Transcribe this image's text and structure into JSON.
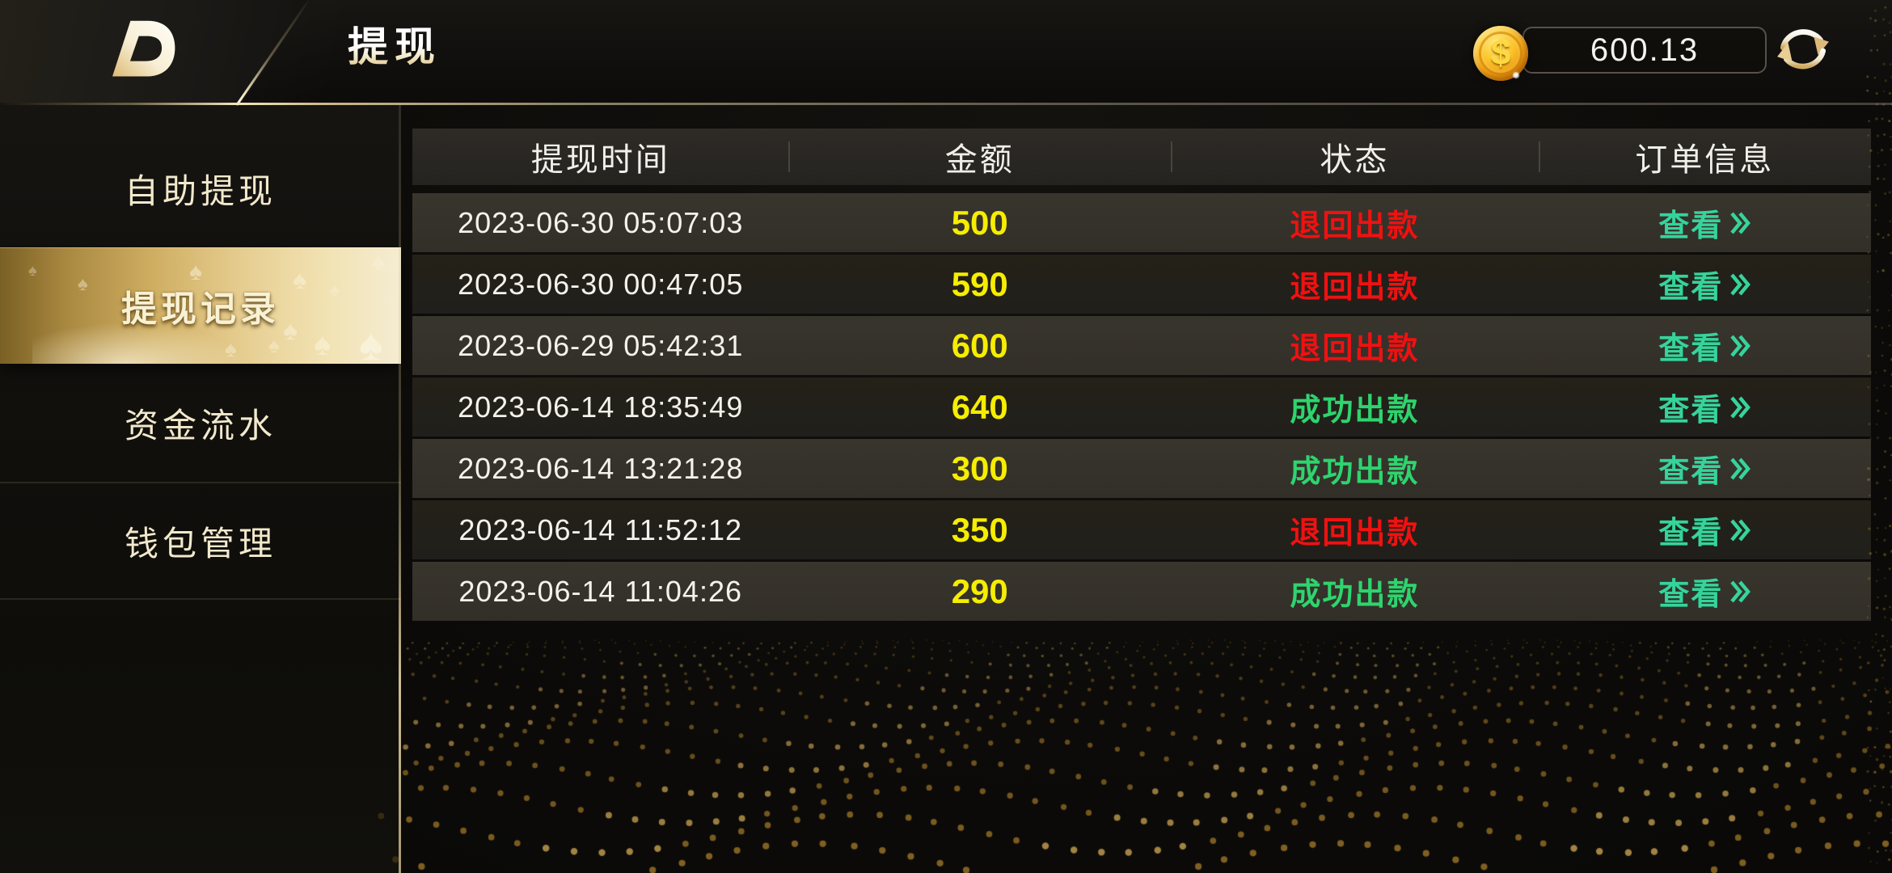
{
  "header": {
    "title": "提现",
    "balance": "600.13",
    "coin_symbol": "$"
  },
  "sidebar": {
    "items": [
      {
        "label": "自助提现",
        "state": ""
      },
      {
        "label": "提现记录",
        "state": "selected"
      },
      {
        "label": "资金流水",
        "state": ""
      },
      {
        "label": "钱包管理",
        "state": ""
      }
    ]
  },
  "table": {
    "columns": [
      "提现时间",
      "金额",
      "状态",
      "订单信息"
    ],
    "view_label": "查看",
    "rows": [
      {
        "time": "2023-06-30 05:07:03",
        "amount": "500",
        "status": "退回出款",
        "status_type": "fail"
      },
      {
        "time": "2023-06-30 00:47:05",
        "amount": "590",
        "status": "退回出款",
        "status_type": "fail"
      },
      {
        "time": "2023-06-29 05:42:31",
        "amount": "600",
        "status": "退回出款",
        "status_type": "fail"
      },
      {
        "time": "2023-06-14 18:35:49",
        "amount": "640",
        "status": "成功出款",
        "status_type": "success"
      },
      {
        "time": "2023-06-14 13:21:28",
        "amount": "300",
        "status": "成功出款",
        "status_type": "success"
      },
      {
        "time": "2023-06-14 11:52:12",
        "amount": "350",
        "status": "退回出款",
        "status_type": "fail"
      },
      {
        "time": "2023-06-14 11:04:26",
        "amount": "290",
        "status": "成功出款",
        "status_type": "success"
      }
    ]
  },
  "colors": {
    "amount_yellow": "#f6ed00",
    "status_fail_red": "#f01111",
    "status_success_green": "#2ed46e",
    "view_link_teal": "#35d49c",
    "accent_gold": "#d4af37",
    "selected_band_gold": "#cfae62"
  }
}
